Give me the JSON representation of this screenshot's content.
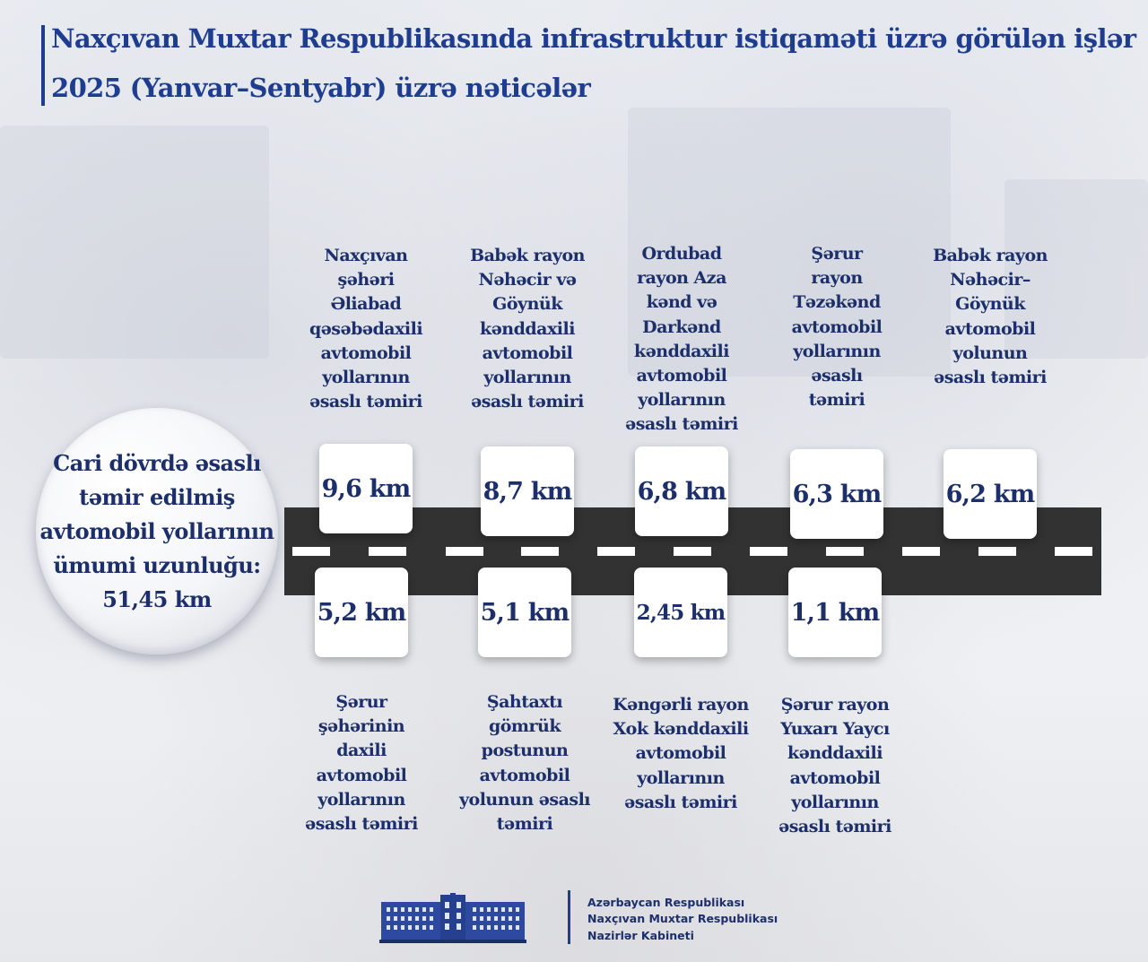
{
  "header": {
    "title_line1": "Naxçıvan Muxtar Respublikasında infrastruktur istiqaməti üzrə görülən işlər",
    "title_line2": "2025 (Yanvar–Sentyabr) üzrə nəticələr"
  },
  "summary": {
    "text": "Cari dövrdə əsaslı\ntəmir edilmiş\navtomobil yollarının\nümumi uzunluğu:\n51,45 km"
  },
  "top_items": [
    {
      "value": "9,6 km",
      "label": "Naxçıvan\nşəhəri\nƏliabad\nqəsəbədaxili\navtomobil\nyollarının\nəsaslı təmiri"
    },
    {
      "value": "8,7 km",
      "label": "Babək rayon\nNəhəcir və\nGöynük\nkənddaxili\navtomobil\nyollarının\nəsaslı təmiri"
    },
    {
      "value": "6,8 km",
      "label": "Ordubad\nrayon Aza\nkənd və\nDarkənd\nkənddaxili\navtomobil\nyollarının\nəsaslı təmiri"
    },
    {
      "value": "6,3 km",
      "label": "Şərur\nrayon\nTəzəkənd\navtomobil\nyollarının\nəsaslı\ntəmiri"
    },
    {
      "value": "6,2 km",
      "label": "Babək rayon\nNəhəcir–\nGöynük\navtomobil\nyolunun\nəsaslı təmiri"
    }
  ],
  "bottom_items": [
    {
      "value": "5,2 km",
      "label": "Şərur\nşəhərinin\ndaxili\navtomobil\nyollarının\nəsaslı təmiri"
    },
    {
      "value": "5,1 km",
      "label": "Şahtaxtı\ngömrük\npostunun\navtomobil\nyolunun əsaslı\ntəmiri"
    },
    {
      "value": "2,45 km",
      "label": "Kəngərli rayon\nXok kənddaxili\navtomobil\nyollarının\nəsaslı təmiri"
    },
    {
      "value": "1,1 km",
      "label": "Şərur rayon\nYuxarı Yaycı\nkənddaxili\navtomobil\nyollarının\nəsaslı təmiri"
    }
  ],
  "footer": {
    "line1": "Azərbaycan Respublikası",
    "line2": "Naxçıvan Muxtar Respublikası",
    "line3": "Nazirlər Kabineti"
  },
  "colors": {
    "title": "#1f3d8f",
    "text": "#1c2f6b",
    "road": "#323232",
    "card": "#ffffff"
  },
  "icons": {
    "footer_logo": "government-building-icon"
  }
}
